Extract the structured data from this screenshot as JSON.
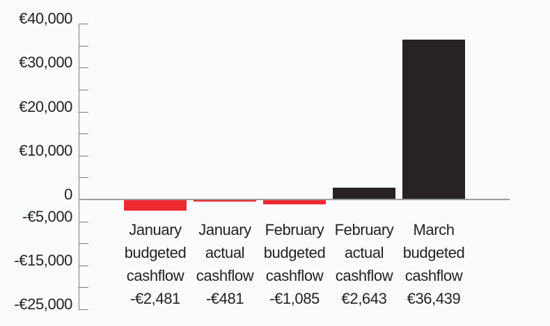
{
  "chart_data": {
    "type": "bar",
    "title": "",
    "xlabel": "",
    "ylabel": "",
    "grid": false,
    "legend": null,
    "categories": [
      "January budgeted cashflow",
      "January actual cashflow",
      "February budgeted cashflow",
      "February actual cashflow",
      "March budgeted cashflow"
    ],
    "values": [
      -2481,
      -481,
      -1085,
      2643,
      36439
    ],
    "value_labels": [
      "-€2,481",
      "-€481",
      "-€1,085",
      "€2,643",
      "€36,439"
    ],
    "y_axis": {
      "min": -25000,
      "max": 40000,
      "tick_step": 5000,
      "tick_labels": [
        {
          "value": 40000,
          "label": "€40,000"
        },
        {
          "value": 30000,
          "label": "€30,000"
        },
        {
          "value": 20000,
          "label": "€20,000"
        },
        {
          "value": 10000,
          "label": "€10,000"
        },
        {
          "value": 0,
          "label": "0"
        },
        {
          "value": -5000,
          "label": "-€5,000"
        },
        {
          "value": -15000,
          "label": "-€15,000"
        },
        {
          "value": -25000,
          "label": "-€25,000"
        }
      ]
    },
    "colors": {
      "positive_bar": "#272325",
      "negative_bar": "#ee2a31",
      "axis": "#7a7a7a",
      "zero_line": "#9c9c9c",
      "text": "#231f20",
      "background": "#fafbfd"
    }
  }
}
